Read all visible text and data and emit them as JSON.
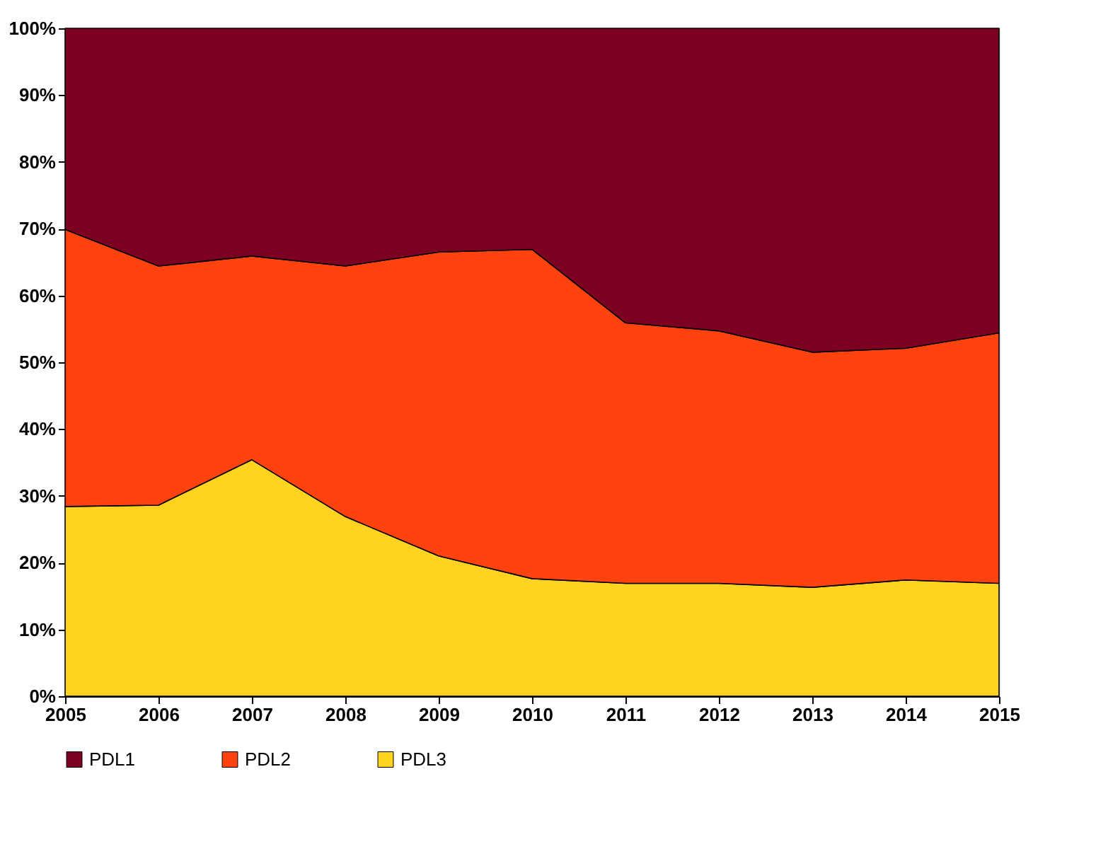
{
  "chart_data": {
    "type": "area",
    "stacked": true,
    "x": [
      2005,
      2006,
      2007,
      2008,
      2009,
      2010,
      2011,
      2012,
      2013,
      2014,
      2015
    ],
    "series": [
      {
        "name": "PDL3",
        "color": "#ffd320",
        "values": [
          28.4,
          28.6,
          35.4,
          26.9,
          21.0,
          17.6,
          16.9,
          16.9,
          16.3,
          17.4,
          16.9
        ]
      },
      {
        "name": "PDL2",
        "color": "#ff420e",
        "values": [
          41.5,
          35.8,
          30.5,
          37.5,
          45.5,
          49.3,
          39.0,
          37.8,
          35.2,
          34.7,
          37.5
        ]
      },
      {
        "name": "PDL1",
        "color": "#7e0021",
        "values": [
          30.1,
          35.6,
          34.1,
          35.6,
          33.5,
          33.1,
          44.1,
          45.3,
          48.5,
          47.9,
          45.6
        ]
      }
    ],
    "xlim": [
      2005,
      2015
    ],
    "xticks": [
      2005,
      2006,
      2007,
      2008,
      2009,
      2010,
      2011,
      2012,
      2013,
      2014,
      2015
    ],
    "ylim": [
      0,
      100
    ],
    "yticks": [
      {
        "value": 0,
        "label": "0%"
      },
      {
        "value": 10,
        "label": "10%"
      },
      {
        "value": 20,
        "label": "20%"
      },
      {
        "value": 30,
        "label": "30%"
      },
      {
        "value": 40,
        "label": "40%"
      },
      {
        "value": 50,
        "label": "50%"
      },
      {
        "value": 60,
        "label": "60%"
      },
      {
        "value": 70,
        "label": "70%"
      },
      {
        "value": 80,
        "label": "80%"
      },
      {
        "value": 90,
        "label": "90%"
      },
      {
        "value": 100,
        "label": "100%"
      }
    ],
    "legend": "bottom"
  }
}
